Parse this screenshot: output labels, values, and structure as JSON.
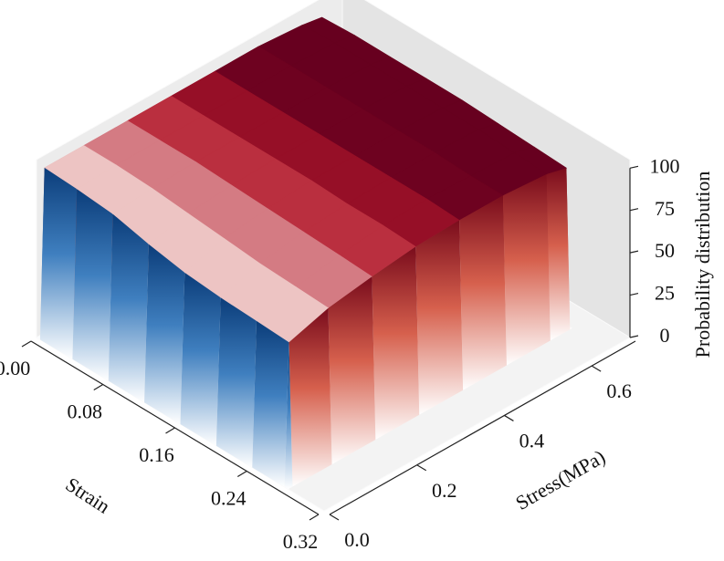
{
  "chart_data": {
    "type": "surface",
    "xlabel": "Strain",
    "ylabel": "Stress(MPa)",
    "zlabel": "Probability distribution",
    "xlim": [
      0,
      0.32
    ],
    "ylim": [
      0,
      0.7
    ],
    "zlim": [
      0,
      105
    ],
    "xticks": [
      {
        "value": 0,
        "label": "0.00"
      },
      {
        "value": 0.08,
        "label": "0.08"
      },
      {
        "value": 0.16,
        "label": "0.16"
      },
      {
        "value": 0.24,
        "label": "0.24"
      },
      {
        "value": 0.32,
        "label": "0.32"
      }
    ],
    "yticks": [
      {
        "value": 0,
        "label": "0.0"
      },
      0.2,
      0.4,
      0.6
    ],
    "zticks": [
      0,
      25,
      50,
      75,
      100
    ],
    "x": [
      0,
      0.004,
      0.04,
      0.08,
      0.12,
      0.16,
      0.2,
      0.24,
      0.276,
      0.28
    ],
    "y": [
      0,
      0.01,
      0.1,
      0.2,
      0.3,
      0.4,
      0.5,
      0.6,
      0.645,
      0.65
    ],
    "z": [
      [
        0,
        0,
        0,
        0,
        0,
        0,
        0,
        0,
        0,
        0
      ],
      [
        0,
        100,
        100,
        100,
        100,
        100,
        100,
        98,
        96,
        0
      ],
      [
        0,
        99,
        100,
        100,
        100,
        100,
        100,
        99,
        97,
        0
      ],
      [
        0,
        97,
        99,
        100,
        100,
        100,
        100,
        99,
        97,
        0
      ],
      [
        0,
        92,
        97,
        99,
        100,
        100,
        100,
        99,
        97,
        0
      ],
      [
        0,
        88,
        95,
        98,
        100,
        100,
        100,
        99,
        97,
        0
      ],
      [
        0,
        86,
        93,
        97,
        99,
        100,
        100,
        99,
        96,
        0
      ],
      [
        0,
        85,
        92,
        96,
        99,
        100,
        99,
        98,
        95,
        0
      ],
      [
        0,
        84,
        91,
        95,
        98,
        99,
        99,
        97,
        94,
        0
      ],
      [
        0,
        0,
        0,
        0,
        0,
        0,
        0,
        0,
        0,
        0
      ]
    ],
    "colormap": {
      "low": "#2166ac",
      "high": "#b2182b"
    }
  }
}
